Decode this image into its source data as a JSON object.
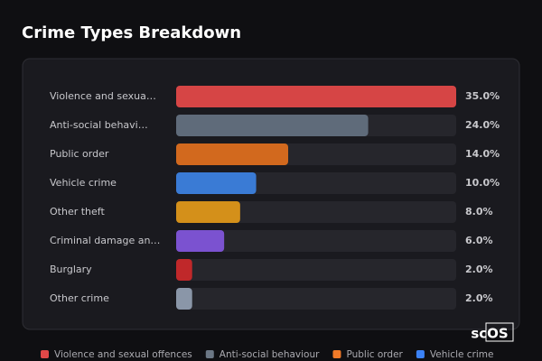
{
  "chart_data": {
    "type": "bar",
    "orientation": "horizontal",
    "title": "Crime Types Breakdown",
    "categories": [
      "Violence and sexua…",
      "Anti-social behavi…",
      "Public order",
      "Vehicle crime",
      "Other theft",
      "Criminal damage an…",
      "Burglary",
      "Other crime"
    ],
    "values": [
      35,
      24,
      14,
      10,
      8,
      6,
      2,
      2
    ],
    "value_labels": [
      "35.0%",
      "24.0%",
      "14.0%",
      "10.0%",
      "8.0%",
      "6.0%",
      "2.0%",
      "2.0%"
    ],
    "colors": [
      "#d64545",
      "#5f6b7a",
      "#d2691e",
      "#3a7bd5",
      "#d4901a",
      "#7b52d0",
      "#c0282a",
      "#8a96a8"
    ],
    "xlim": [
      0,
      35
    ],
    "legend": [
      {
        "name": "Violence and sexual offences",
        "color": "#e04848"
      },
      {
        "name": "Anti-social behaviour",
        "color": "#6b7785"
      },
      {
        "name": "Public order",
        "color": "#f07a28"
      },
      {
        "name": "Vehicle crime",
        "color": "#3b82f6"
      }
    ],
    "watermark": "scOS"
  }
}
